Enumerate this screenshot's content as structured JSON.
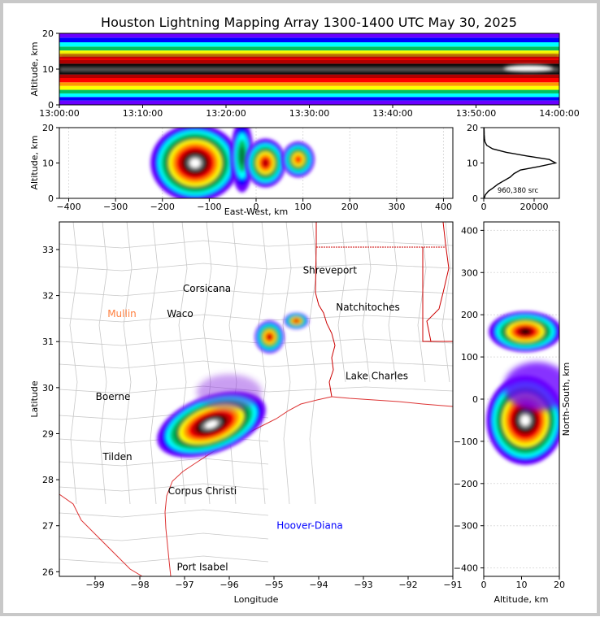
{
  "title": "Houston Lightning Mapping Array 1300-1400 UTC May 30, 2025",
  "colors": {
    "density_scale": [
      "#6a00ff",
      "#8a2be2",
      "#0000ff",
      "#00bfff",
      "#00ffff",
      "#00c060",
      "#008040",
      "#ffff00",
      "#ff9900",
      "#ff0000",
      "#b00000",
      "#400000",
      "#000000",
      "#808080",
      "#ffffff"
    ],
    "state_border": "#cc0000",
    "county_border": "#c8c8c8",
    "coast": "#dd3333"
  },
  "chart_data": [
    {
      "type": "heatmap",
      "name": "altitude-vs-time",
      "ylabel": "Altitude, km",
      "ylim": [
        0,
        20
      ],
      "yticks": [
        "0",
        "10",
        "20"
      ],
      "xticks": [
        "13:00:00",
        "13:10:00",
        "13:20:00",
        "13:30:00",
        "13:40:00",
        "13:50:00",
        "14:00:00"
      ]
    },
    {
      "type": "heatmap",
      "name": "altitude-vs-east-west",
      "xlabel": "East-West, km",
      "ylabel": "Altitude, km",
      "xlim": [
        -420,
        420
      ],
      "ylim": [
        0,
        20
      ],
      "xticks": [
        "−400",
        "−300",
        "−200",
        "−100",
        "0",
        "100",
        "200",
        "300",
        "400"
      ],
      "yticks": [
        "0",
        "10",
        "20"
      ]
    },
    {
      "type": "line",
      "name": "source-altitude-histogram",
      "annotation": "960,380 src",
      "xticks": [
        "0",
        "20000"
      ],
      "yticks": [
        "0",
        "10",
        "20"
      ],
      "ylim": [
        0,
        20
      ],
      "xlim": [
        0,
        30000
      ],
      "altitude": [
        0,
        1,
        2,
        3,
        4,
        5,
        6,
        7,
        8,
        9,
        10,
        11,
        12,
        13,
        14,
        15,
        16,
        17,
        18,
        19,
        20
      ],
      "sources": [
        200,
        600,
        1800,
        3800,
        5600,
        8000,
        10500,
        12000,
        14500,
        22000,
        28500,
        26000,
        17000,
        9000,
        3500,
        1200,
        500,
        300,
        200,
        150,
        100
      ]
    },
    {
      "type": "heatmap",
      "name": "plan-view-map",
      "xlabel": "Longitude",
      "ylabel": "Latitude",
      "xlim": [
        -99.8,
        -91
      ],
      "ylim": [
        25.9,
        33.6
      ],
      "xticks": [
        "−99",
        "−98",
        "−97",
        "−96",
        "−95",
        "−94",
        "−93",
        "−92",
        "−91"
      ],
      "yticks": [
        "26",
        "27",
        "28",
        "29",
        "30",
        "31",
        "32",
        "33"
      ],
      "cities": [
        {
          "name": "Shreveport",
          "lon": -93.75,
          "lat": 32.55,
          "color": "#000000"
        },
        {
          "name": "Corsicana",
          "lon": -96.5,
          "lat": 32.15,
          "color": "#000000"
        },
        {
          "name": "Mullin",
          "lon": -98.4,
          "lat": 31.6,
          "color": "#ff8040"
        },
        {
          "name": "Waco",
          "lon": -97.1,
          "lat": 31.6,
          "color": "#000000"
        },
        {
          "name": "Natchitoches",
          "lon": -92.9,
          "lat": 31.75,
          "color": "#000000"
        },
        {
          "name": "Lake Charles",
          "lon": -92.7,
          "lat": 30.25,
          "color": "#000000"
        },
        {
          "name": "Boerne",
          "lon": -98.6,
          "lat": 29.8,
          "color": "#000000"
        },
        {
          "name": "Tilden",
          "lon": -98.5,
          "lat": 28.5,
          "color": "#000000"
        },
        {
          "name": "Corpus Christi",
          "lon": -96.6,
          "lat": 27.75,
          "color": "#000000"
        },
        {
          "name": "Hoover-Diana",
          "lon": -94.2,
          "lat": 27.0,
          "color": "#0000ff"
        },
        {
          "name": "Port Isabel",
          "lon": -96.6,
          "lat": 26.1,
          "color": "#000000"
        }
      ]
    },
    {
      "type": "heatmap",
      "name": "north-south-vs-altitude",
      "xlabel": "Altitude, km",
      "ylabel": "North-South, km",
      "xlim": [
        0,
        20
      ],
      "ylim": [
        -420,
        420
      ],
      "xticks": [
        "0",
        "10",
        "20"
      ],
      "yticks": [
        "−400",
        "−300",
        "−200",
        "−100",
        "0",
        "100",
        "200",
        "300",
        "400"
      ]
    }
  ]
}
